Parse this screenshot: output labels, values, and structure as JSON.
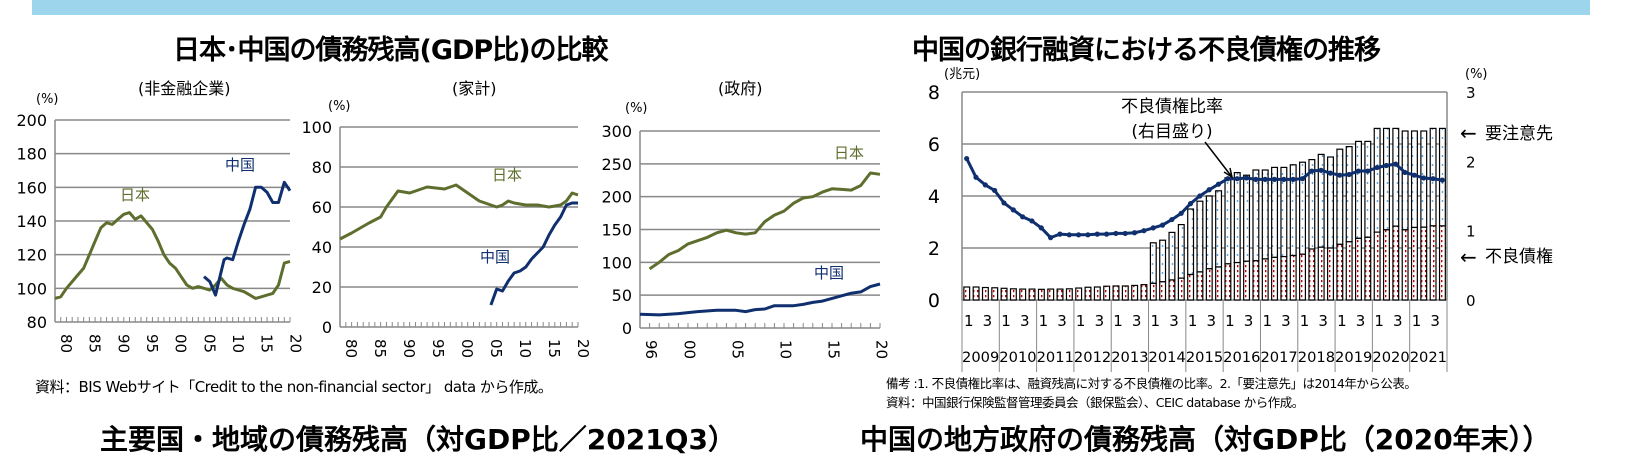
{
  "colors": {
    "header_bar": "#9dd5ec",
    "japan": "#5e6e2e",
    "china": "#0f2f6e",
    "npl": "#c00000",
    "special_mention": "#3b8fd0"
  },
  "left_title": "日本･中国の債務残高(GDP比)の比較",
  "right_title": "中国の銀行融資における不良債権の推移",
  "left_source": "資料：BIS Webサイト「Credit to the non-financial sector」 data から作成。",
  "right_note1": "備考 :1. 不良債権比率は、融資残高に対する不良債権の比率。2.「要注意先」は2014年から公表。",
  "right_note2": "資料：中国銀行保険監督管理委員会（銀保監会）、CEIC database から作成。",
  "bottom_cut_left": "主要国・地域の債務残高（対GDP比／2021Q3）",
  "bottom_cut_right": "中国の地方政府の債務残高（対GDP比（2020年末））",
  "chart_data": [
    {
      "type": "line",
      "title": "(非金融企業)",
      "ylabel": "(%)",
      "ylim": [
        80,
        200
      ],
      "yticks": [
        80,
        100,
        120,
        140,
        160,
        180,
        200
      ],
      "xlim": [
        1980,
        2021
      ],
      "xtick_labels": [
        "80",
        "85",
        "90",
        "95",
        "00",
        "05",
        "10",
        "15",
        "20"
      ],
      "xtick_years": [
        1980,
        1985,
        1990,
        1995,
        2000,
        2005,
        2010,
        2015,
        2020
      ],
      "grid": true,
      "series": [
        {
          "name": "日本",
          "color": "#5e6e2e",
          "x": [
            1980,
            1981,
            1982,
            1983,
            1984,
            1985,
            1986,
            1987,
            1988,
            1989,
            1990,
            1991,
            1992,
            1993,
            1994,
            1995,
            1996,
            1997,
            1998,
            1999,
            2000,
            2001,
            2002,
            2003,
            2004,
            2005,
            2006,
            2007,
            2008,
            2009,
            2010,
            2011,
            2012,
            2013,
            2014,
            2015,
            2016,
            2017,
            2018,
            2019,
            2020,
            2021
          ],
          "y": [
            94,
            95,
            100,
            104,
            108,
            112,
            120,
            128,
            136,
            139,
            138,
            141,
            144,
            145,
            141,
            143,
            139,
            135,
            128,
            120,
            115,
            112,
            107,
            102,
            100,
            101,
            100,
            99,
            102,
            106,
            102,
            100,
            99,
            98,
            96,
            94,
            95,
            96,
            97,
            102,
            115,
            116
          ]
        },
        {
          "name": "中国",
          "color": "#0f2f6e",
          "x": [
            2006,
            2007,
            2008,
            2009,
            2009.5,
            2010,
            2011,
            2012,
            2013,
            2014,
            2015,
            2016,
            2017,
            2018,
            2019,
            2020,
            2021
          ],
          "y": [
            107,
            104,
            96,
            110,
            117,
            118,
            117,
            128,
            138,
            147,
            160,
            160,
            157,
            151,
            151,
            163,
            158
          ]
        }
      ]
    },
    {
      "type": "line",
      "title": "(家計)",
      "ylabel": "(%)",
      "ylim": [
        0,
        100
      ],
      "yticks": [
        0,
        20,
        40,
        60,
        80,
        100
      ],
      "xlim": [
        1980,
        2021
      ],
      "xtick_labels": [
        "80",
        "85",
        "90",
        "95",
        "00",
        "05",
        "10",
        "15",
        "20"
      ],
      "xtick_years": [
        1980,
        1985,
        1990,
        1995,
        2000,
        2005,
        2010,
        2015,
        2020
      ],
      "grid": true,
      "series": [
        {
          "name": "日本",
          "color": "#5e6e2e",
          "x": [
            1980,
            1982,
            1985,
            1987,
            1988,
            1990,
            1992,
            1995,
            1998,
            2000,
            2002,
            2004,
            2005,
            2007,
            2008,
            2009,
            2010,
            2012,
            2014,
            2016,
            2018,
            2019,
            2020,
            2021
          ],
          "y": [
            44,
            47,
            52,
            55,
            60,
            68,
            67,
            70,
            69,
            71,
            67,
            63,
            62,
            60,
            61,
            63,
            62,
            61,
            61,
            60,
            61,
            63,
            67,
            66
          ]
        },
        {
          "name": "中国",
          "color": "#0f2f6e",
          "x": [
            2006,
            2007,
            2008,
            2009,
            2010,
            2011,
            2012,
            2013,
            2014,
            2015,
            2016,
            2017,
            2018,
            2019,
            2020,
            2021
          ],
          "y": [
            11,
            19,
            18,
            23,
            27,
            28,
            30,
            34,
            37,
            40,
            46,
            51,
            55,
            61,
            62,
            62
          ]
        }
      ]
    },
    {
      "type": "line",
      "title": "(政府)",
      "ylabel": "(%)",
      "ylim": [
        0,
        300
      ],
      "yticks": [
        0,
        50,
        100,
        150,
        200,
        250,
        300
      ],
      "xlim": [
        1996,
        2021
      ],
      "xtick_labels": [
        "96",
        "00",
        "05",
        "10",
        "15",
        "20"
      ],
      "xtick_years": [
        1996,
        2000,
        2005,
        2010,
        2015,
        2020
      ],
      "grid": true,
      "series": [
        {
          "name": "日本",
          "color": "#5e6e2e",
          "x": [
            1997,
            1998,
            1999,
            2000,
            2001,
            2002,
            2003,
            2004,
            2005,
            2006,
            2007,
            2008,
            2009,
            2010,
            2011,
            2012,
            2013,
            2014,
            2015,
            2016,
            2017,
            2018,
            2019,
            2020,
            2021
          ],
          "y": [
            90,
            100,
            112,
            118,
            128,
            133,
            138,
            145,
            149,
            145,
            143,
            145,
            162,
            172,
            178,
            190,
            198,
            200,
            207,
            212,
            211,
            210,
            217,
            236,
            234
          ]
        },
        {
          "name": "中国",
          "color": "#0f2f6e",
          "x": [
            1996,
            1998,
            2000,
            2002,
            2004,
            2006,
            2007,
            2008,
            2009,
            2010,
            2012,
            2013,
            2014,
            2015,
            2016,
            2017,
            2018,
            2019,
            2020,
            2021
          ],
          "y": [
            21,
            20,
            22,
            25,
            27,
            27,
            25,
            28,
            29,
            34,
            34,
            36,
            39,
            41,
            45,
            49,
            53,
            55,
            63,
            67
          ]
        }
      ]
    },
    {
      "type": "bar+line",
      "ylabel_left": "(兆元)",
      "ylabel_right": "(%)",
      "ylim_left": [
        0,
        8
      ],
      "yticks_left": [
        0,
        2,
        4,
        6,
        8
      ],
      "ylim_right": [
        0,
        3
      ],
      "yticks_right": [
        0,
        1,
        2,
        3
      ],
      "quarter_labels": [
        "1",
        "3"
      ],
      "years": [
        "2009",
        "2010",
        "2011",
        "2012",
        "2013",
        "2014",
        "2015",
        "2016",
        "2017",
        "2018",
        "2019",
        "2020",
        "2021"
      ],
      "annotation": [
        "不良債権比率",
        "(右目盛り)"
      ],
      "side_labels": {
        "special_mention": "要注意先",
        "npl": "不良債権"
      },
      "grid": true,
      "npl": [
        0.5,
        0.5,
        0.48,
        0.47,
        0.45,
        0.43,
        0.42,
        0.42,
        0.41,
        0.42,
        0.42,
        0.43,
        0.46,
        0.49,
        0.5,
        0.53,
        0.54,
        0.54,
        0.56,
        0.59,
        0.64,
        0.7,
        0.77,
        0.84,
        0.98,
        1.08,
        1.2,
        1.27,
        1.39,
        1.44,
        1.49,
        1.51,
        1.58,
        1.64,
        1.67,
        1.71,
        1.76,
        1.96,
        2.03,
        2.0,
        2.14,
        2.24,
        2.37,
        2.41,
        2.61,
        2.7,
        2.84,
        2.7,
        2.79,
        2.8,
        2.85,
        2.85
      ],
      "total": [
        0.5,
        0.5,
        0.48,
        0.47,
        0.45,
        0.43,
        0.42,
        0.42,
        0.41,
        0.42,
        0.42,
        0.43,
        0.46,
        0.49,
        0.5,
        0.53,
        0.54,
        0.54,
        0.56,
        0.59,
        2.2,
        2.3,
        2.6,
        2.9,
        3.5,
        3.8,
        4.0,
        4.2,
        4.7,
        4.9,
        4.8,
        5.0,
        5.0,
        5.1,
        5.1,
        5.2,
        5.3,
        5.4,
        5.6,
        5.5,
        5.8,
        5.9,
        6.1,
        6.1,
        6.6,
        6.6,
        6.6,
        6.5,
        6.5,
        6.5,
        6.6,
        6.6
      ],
      "npl_ratio": [
        2.04,
        1.77,
        1.66,
        1.58,
        1.4,
        1.3,
        1.2,
        1.14,
        1.04,
        0.9,
        0.95,
        0.94,
        0.94,
        0.94,
        0.95,
        0.95,
        0.96,
        0.96,
        0.97,
        1.0,
        1.04,
        1.08,
        1.16,
        1.25,
        1.39,
        1.5,
        1.59,
        1.67,
        1.75,
        1.75,
        1.76,
        1.74,
        1.74,
        1.74,
        1.74,
        1.74,
        1.75,
        1.86,
        1.87,
        1.83,
        1.8,
        1.81,
        1.86,
        1.86,
        1.91,
        1.94,
        1.96,
        1.84,
        1.8,
        1.76,
        1.75,
        1.73
      ]
    }
  ]
}
